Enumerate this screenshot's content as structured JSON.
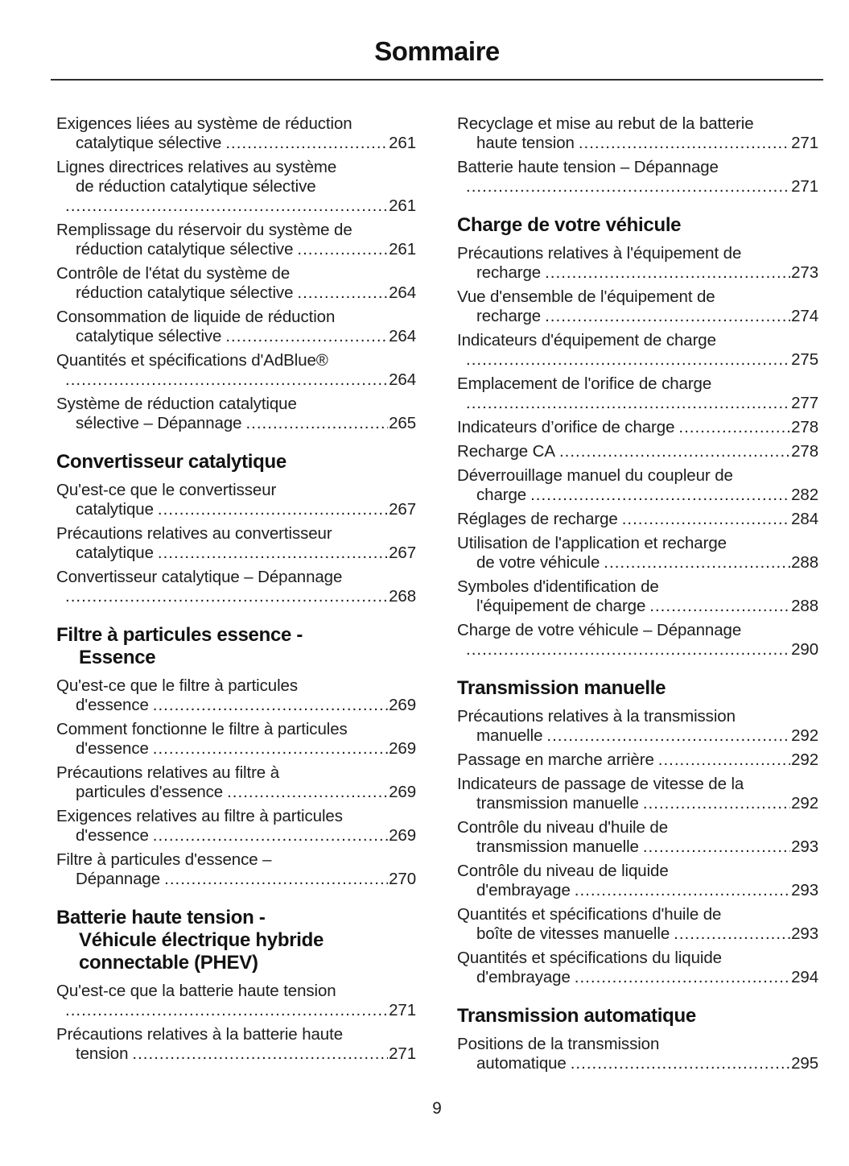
{
  "page": {
    "title": "Sommaire",
    "footer_page_number": "9"
  },
  "colors": {
    "text": "#1d1d1d",
    "heading": "#121212",
    "rule": "#2e2e2e",
    "background": "#ffffff"
  },
  "toc": {
    "left": [
      {
        "kind": "entry",
        "lines": [
          "Exigences liées au système de réduction",
          "catalytique sélective"
        ],
        "page": "261"
      },
      {
        "kind": "entry",
        "lines": [
          "Lignes directrices relatives au système",
          "de réduction catalytique sélective",
          ""
        ],
        "page": "261"
      },
      {
        "kind": "entry",
        "lines": [
          "Remplissage du réservoir du système de",
          "réduction catalytique sélective"
        ],
        "page": "261"
      },
      {
        "kind": "entry",
        "lines": [
          "Contrôle de l'état du système de",
          "réduction catalytique sélective"
        ],
        "page": "264"
      },
      {
        "kind": "entry",
        "lines": [
          "Consommation de liquide de réduction",
          "catalytique sélective"
        ],
        "page": "264"
      },
      {
        "kind": "entry",
        "lines": [
          "Quantités et spécifications d'AdBlue®",
          ""
        ],
        "page": "264"
      },
      {
        "kind": "entry",
        "lines": [
          "Système de réduction catalytique",
          "sélective – Dépannage"
        ],
        "page": "265"
      },
      {
        "kind": "heading",
        "lines": [
          "Convertisseur catalytique"
        ]
      },
      {
        "kind": "entry",
        "lines": [
          "Qu'est-ce que le convertisseur",
          "catalytique"
        ],
        "page": "267"
      },
      {
        "kind": "entry",
        "lines": [
          "Précautions relatives au convertisseur",
          "catalytique"
        ],
        "page": "267"
      },
      {
        "kind": "entry",
        "lines": [
          "Convertisseur catalytique – Dépannage",
          ""
        ],
        "page": "268"
      },
      {
        "kind": "heading",
        "lines": [
          "Filtre à particules essence -",
          "Essence"
        ]
      },
      {
        "kind": "entry",
        "lines": [
          "Qu'est-ce que le filtre à particules",
          "d'essence"
        ],
        "page": "269"
      },
      {
        "kind": "entry",
        "lines": [
          "Comment fonctionne le filtre à particules",
          "d'essence"
        ],
        "page": "269"
      },
      {
        "kind": "entry",
        "lines": [
          "Précautions relatives au filtre à",
          "particules d'essence"
        ],
        "page": "269"
      },
      {
        "kind": "entry",
        "lines": [
          "Exigences relatives au filtre à particules",
          "d'essence"
        ],
        "page": "269"
      },
      {
        "kind": "entry",
        "lines": [
          "Filtre à particules d'essence –",
          "Dépannage"
        ],
        "page": "270"
      },
      {
        "kind": "heading",
        "lines": [
          "Batterie haute tension -",
          "Véhicule électrique hybride",
          "connectable (PHEV)"
        ]
      },
      {
        "kind": "entry",
        "lines": [
          "Qu'est-ce que la batterie haute tension",
          ""
        ],
        "page": "271"
      },
      {
        "kind": "entry",
        "lines": [
          "Précautions relatives à la batterie haute",
          "tension"
        ],
        "page": "271"
      }
    ],
    "right": [
      {
        "kind": "entry",
        "lines": [
          "Recyclage et mise au rebut de la batterie",
          "haute tension"
        ],
        "page": "271"
      },
      {
        "kind": "entry",
        "lines": [
          "Batterie haute tension – Dépannage",
          ""
        ],
        "page": "271"
      },
      {
        "kind": "heading",
        "lines": [
          "Charge de votre véhicule"
        ]
      },
      {
        "kind": "entry",
        "lines": [
          "Précautions relatives à l'équipement de",
          "recharge"
        ],
        "page": "273"
      },
      {
        "kind": "entry",
        "lines": [
          "Vue d'ensemble de l'équipement de",
          "recharge"
        ],
        "page": "274"
      },
      {
        "kind": "entry",
        "lines": [
          "Indicateurs d'équipement de charge",
          ""
        ],
        "page": "275"
      },
      {
        "kind": "entry",
        "lines": [
          "Emplacement de l'orifice de charge",
          ""
        ],
        "page": "277"
      },
      {
        "kind": "entry",
        "lines": [
          "Indicateurs d’orifice de charge"
        ],
        "page": "278"
      },
      {
        "kind": "entry",
        "lines": [
          "Recharge CA"
        ],
        "page": "278"
      },
      {
        "kind": "entry",
        "lines": [
          "Déverrouillage manuel du coupleur de",
          "charge"
        ],
        "page": "282"
      },
      {
        "kind": "entry",
        "lines": [
          "Réglages de recharge"
        ],
        "page": "284"
      },
      {
        "kind": "entry",
        "lines": [
          "Utilisation de l'application et recharge",
          "de votre véhicule"
        ],
        "page": "288"
      },
      {
        "kind": "entry",
        "lines": [
          "Symboles d'identification de",
          "l'équipement de charge"
        ],
        "page": "288"
      },
      {
        "kind": "entry",
        "lines": [
          "Charge de votre véhicule – Dépannage",
          ""
        ],
        "page": "290"
      },
      {
        "kind": "heading",
        "lines": [
          "Transmission manuelle"
        ]
      },
      {
        "kind": "entry",
        "lines": [
          "Précautions relatives à la transmission",
          "manuelle"
        ],
        "page": "292"
      },
      {
        "kind": "entry",
        "lines": [
          "Passage en marche arrière"
        ],
        "page": "292"
      },
      {
        "kind": "entry",
        "lines": [
          "Indicateurs de passage de vitesse de la",
          "transmission manuelle"
        ],
        "page": "292"
      },
      {
        "kind": "entry",
        "lines": [
          "Contrôle du niveau d'huile de",
          "transmission manuelle"
        ],
        "page": "293"
      },
      {
        "kind": "entry",
        "lines": [
          "Contrôle du niveau de liquide",
          "d'embrayage"
        ],
        "page": "293"
      },
      {
        "kind": "entry",
        "lines": [
          "Quantités et spécifications d'huile de",
          "boîte de vitesses manuelle"
        ],
        "page": "293"
      },
      {
        "kind": "entry",
        "lines": [
          "Quantités et spécifications du liquide",
          "d'embrayage"
        ],
        "page": "294"
      },
      {
        "kind": "heading",
        "lines": [
          "Transmission automatique"
        ]
      },
      {
        "kind": "entry",
        "lines": [
          "Positions de la transmission",
          "automatique"
        ],
        "page": "295"
      }
    ]
  }
}
